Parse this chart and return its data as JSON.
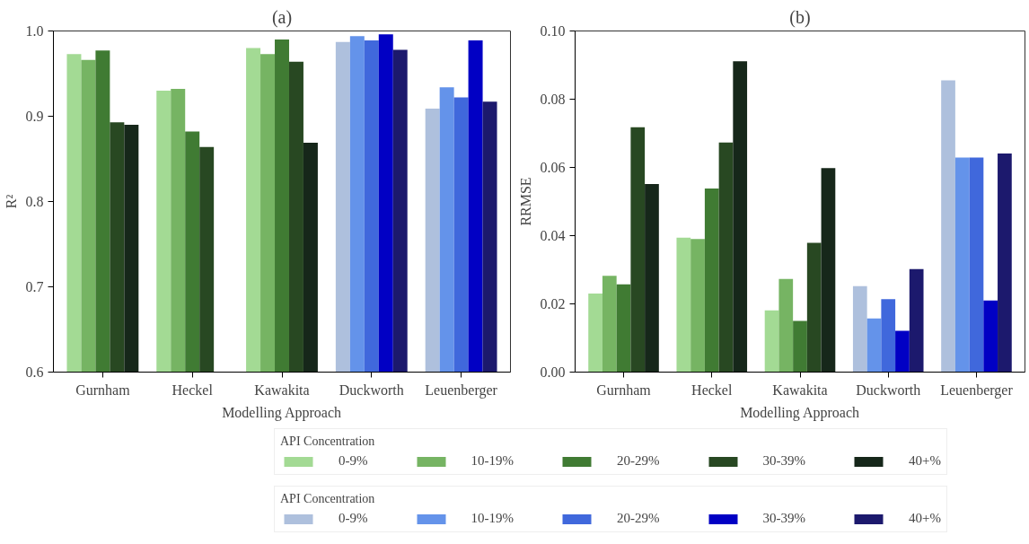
{
  "chart_data": [
    {
      "type": "bar",
      "title": "(a)",
      "xlabel": "Modelling Approach",
      "ylabel": "R²",
      "categories": [
        "Gurnham",
        "Heckel",
        "Kawakita",
        "Duckworth",
        "Leuenberger"
      ],
      "ylim": [
        0.6,
        1.0
      ],
      "yticks": [
        {
          "value": 0.6,
          "label": "0.6"
        },
        {
          "value": 0.7,
          "label": "0.7"
        },
        {
          "value": 0.8,
          "label": "0.8"
        },
        {
          "value": 0.9,
          "label": "0.9"
        },
        {
          "value": 1.0,
          "label": "1.0"
        }
      ],
      "grid": false,
      "legend": "bottom",
      "legend_title": "API Concentration",
      "series": [
        {
          "name": "0-9%",
          "color": "#a3da94",
          "values": [
            0.973,
            0.93,
            0.98,
            null,
            null
          ]
        },
        {
          "name": "10-19%",
          "color": "#76b463",
          "values": [
            0.966,
            0.932,
            0.973,
            null,
            null
          ]
        },
        {
          "name": "20-29%",
          "color": "#407b33",
          "values": [
            0.977,
            0.882,
            0.99,
            null,
            null
          ]
        },
        {
          "name": "30-39%",
          "color": "#284822",
          "values": [
            0.893,
            0.864,
            0.964,
            null,
            null
          ]
        },
        {
          "name": "40+%",
          "color": "#16271a",
          "values": [
            0.89,
            null,
            0.869,
            null,
            null
          ]
        },
        {
          "name": "0-9%",
          "color": "#aec0dd",
          "values": [
            null,
            null,
            null,
            0.987,
            0.909
          ]
        },
        {
          "name": "10-19%",
          "color": "#6493ea",
          "values": [
            null,
            null,
            null,
            0.994,
            0.934
          ]
        },
        {
          "name": "20-29%",
          "color": "#4068dc",
          "values": [
            null,
            null,
            null,
            0.989,
            0.922
          ]
        },
        {
          "name": "30-39%",
          "color": "#0100c4",
          "values": [
            null,
            null,
            null,
            0.996,
            0.989
          ]
        },
        {
          "name": "40+%",
          "color": "#1c196d",
          "values": [
            null,
            null,
            null,
            0.978,
            0.917
          ]
        }
      ]
    },
    {
      "type": "bar",
      "title": "(b)",
      "xlabel": "Modelling Approach",
      "ylabel": "RRMSE",
      "categories": [
        "Gurnham",
        "Heckel",
        "Kawakita",
        "Duckworth",
        "Leuenberger"
      ],
      "ylim": [
        0,
        0.1
      ],
      "yticks": [
        {
          "value": 0,
          "label": "0.00"
        },
        {
          "value": 0.02,
          "label": "0.02"
        },
        {
          "value": 0.04,
          "label": "0.04"
        },
        {
          "value": 0.06,
          "label": "0.06"
        },
        {
          "value": 0.08,
          "label": "0.08"
        },
        {
          "value": 0.1,
          "label": "0.10"
        }
      ],
      "grid": false,
      "series": [
        {
          "color": "#a3da94",
          "values": [
            0.023,
            0.0394,
            0.0181,
            null,
            null
          ]
        },
        {
          "color": "#76b463",
          "values": [
            0.0282,
            0.039,
            0.0273,
            null,
            null
          ]
        },
        {
          "color": "#407b33",
          "values": [
            0.0257,
            0.0538,
            0.015,
            null,
            null
          ]
        },
        {
          "color": "#284822",
          "values": [
            0.0718,
            0.0673,
            0.0379,
            null,
            null
          ]
        },
        {
          "color": "#16271a",
          "values": [
            0.0551,
            0.0911,
            0.0598,
            null,
            null
          ]
        },
        {
          "color": "#aec0dd",
          "values": [
            null,
            null,
            null,
            0.0252,
            0.0855
          ]
        },
        {
          "color": "#6493ea",
          "values": [
            null,
            null,
            null,
            0.0157,
            0.0629
          ]
        },
        {
          "color": "#4068dc",
          "values": [
            null,
            null,
            null,
            0.0214,
            0.0629
          ]
        },
        {
          "color": "#0100c4",
          "values": [
            null,
            null,
            null,
            0.0121,
            0.021
          ]
        },
        {
          "color": "#1c196d",
          "values": [
            null,
            null,
            null,
            0.0302,
            0.0641
          ]
        }
      ]
    }
  ]
}
